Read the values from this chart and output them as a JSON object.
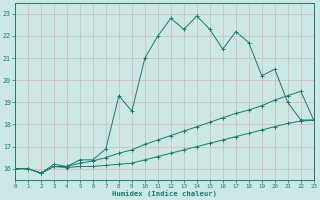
{
  "xlabel": "Humidex (Indice chaleur)",
  "background_color": "#cce8e4",
  "grid_color": "#b8d8d4",
  "line_color": "#1a7a6e",
  "xlim": [
    0,
    23
  ],
  "ylim": [
    15.5,
    23.5
  ],
  "x_ticks": [
    0,
    1,
    2,
    3,
    4,
    5,
    6,
    7,
    8,
    9,
    10,
    11,
    12,
    13,
    14,
    15,
    16,
    17,
    18,
    19,
    20,
    21,
    22,
    23
  ],
  "y_ticks": [
    16,
    17,
    18,
    19,
    20,
    21,
    22,
    23
  ],
  "line1_x": [
    0,
    1,
    2,
    3,
    4,
    5,
    6,
    7,
    8,
    9,
    10,
    11,
    12,
    13,
    14,
    15,
    16,
    17,
    18,
    19,
    20,
    21,
    22,
    23
  ],
  "line1_y": [
    16.0,
    16.0,
    15.8,
    16.2,
    16.1,
    16.4,
    16.4,
    16.9,
    19.3,
    18.6,
    21.0,
    22.0,
    22.8,
    22.3,
    22.9,
    22.3,
    21.4,
    22.2,
    21.7,
    20.2,
    20.5,
    19.0,
    18.2,
    18.2
  ],
  "line2_x": [
    0,
    1,
    2,
    3,
    4,
    5,
    6,
    7,
    8,
    9,
    10,
    11,
    12,
    13,
    14,
    15,
    16,
    17,
    18,
    19,
    20,
    21,
    22,
    23
  ],
  "line2_y": [
    16.0,
    16.0,
    15.8,
    16.1,
    16.1,
    16.25,
    16.35,
    16.5,
    16.7,
    16.85,
    17.1,
    17.3,
    17.5,
    17.7,
    17.9,
    18.1,
    18.3,
    18.5,
    18.65,
    18.85,
    19.1,
    19.3,
    19.5,
    18.2
  ],
  "line3_x": [
    0,
    1,
    2,
    3,
    4,
    5,
    6,
    7,
    8,
    9,
    10,
    11,
    12,
    13,
    14,
    15,
    16,
    17,
    18,
    19,
    20,
    21,
    22,
    23
  ],
  "line3_y": [
    16.0,
    16.0,
    15.8,
    16.1,
    16.05,
    16.1,
    16.1,
    16.15,
    16.2,
    16.25,
    16.4,
    16.55,
    16.7,
    16.85,
    17.0,
    17.15,
    17.3,
    17.45,
    17.6,
    17.75,
    17.9,
    18.05,
    18.15,
    18.2
  ]
}
